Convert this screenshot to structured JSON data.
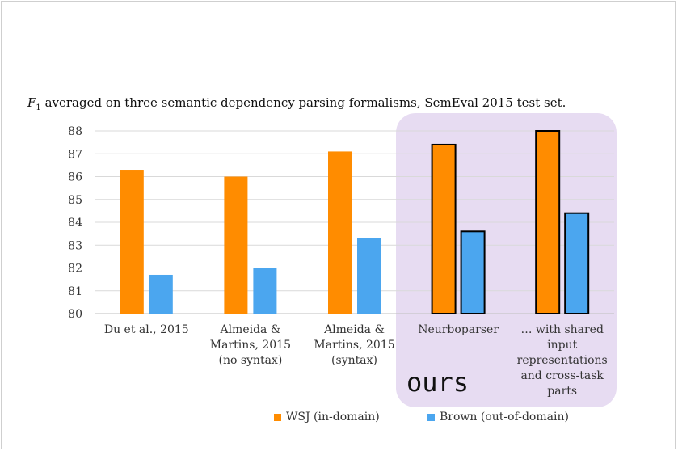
{
  "slide": {
    "title_var": "F",
    "title_sub": "1",
    "title_rest": " averaged on three semantic dependency parsing formalisms, SemEval 2015 test set.",
    "ours_label": "ours"
  },
  "colors": {
    "wsj": "#ff8c00",
    "brown": "#4ba6ef",
    "highlight": "#e7dcf2",
    "grid": "#d9d9d9"
  },
  "chart_data": {
    "type": "bar",
    "categories": [
      "Du et al., 2015",
      "Almeida &\nMartins, 2015\n(no syntax)",
      "Almeida &\nMartins, 2015\n(syntax)",
      "Neurboparser",
      "… with shared\ninput\nrepresentations\nand cross-task\nparts"
    ],
    "series": [
      {
        "name": "WSJ (in-domain)",
        "values": [
          86.3,
          86.0,
          87.1,
          87.4,
          88.0
        ]
      },
      {
        "name": "Brown (out-of-domain)",
        "values": [
          81.7,
          82.0,
          83.3,
          83.6,
          84.4
        ]
      }
    ],
    "outlined_categories": [
      3,
      4
    ],
    "ylim": [
      80,
      88
    ],
    "yticks": [
      80,
      81,
      82,
      83,
      84,
      85,
      86,
      87,
      88
    ],
    "grid": true,
    "legend_position": "bottom"
  }
}
